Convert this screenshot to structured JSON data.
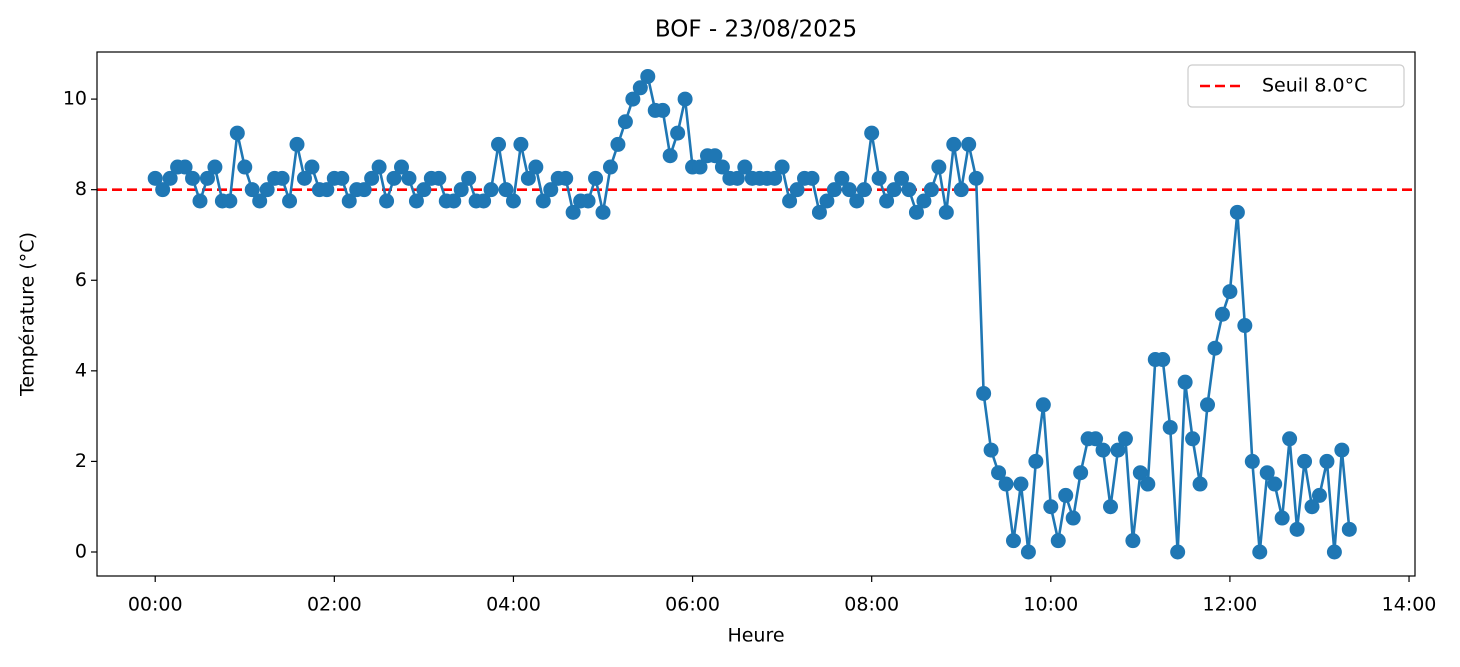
{
  "chart_data": {
    "type": "line",
    "title": "BOF - 23/08/2025",
    "x_label": "Heure",
    "y_label": "Température (°C)",
    "x": [
      0,
      5,
      10,
      15,
      20,
      25,
      30,
      35,
      40,
      45,
      50,
      55,
      60,
      65,
      70,
      75,
      80,
      85,
      90,
      95,
      100,
      105,
      110,
      115,
      120,
      125,
      130,
      135,
      140,
      145,
      150,
      155,
      160,
      165,
      170,
      175,
      180,
      185,
      190,
      195,
      200,
      205,
      210,
      215,
      220,
      225,
      230,
      235,
      240,
      245,
      250,
      255,
      260,
      265,
      270,
      275,
      280,
      285,
      290,
      295,
      300,
      305,
      310,
      315,
      320,
      325,
      330,
      335,
      340,
      345,
      350,
      355,
      360,
      365,
      370,
      375,
      380,
      385,
      390,
      395,
      400,
      405,
      410,
      415,
      420,
      425,
      430,
      435,
      440,
      445,
      450,
      455,
      460,
      465,
      470,
      475,
      480,
      485,
      490,
      495,
      500,
      505,
      510,
      515,
      520,
      525,
      530,
      535,
      540,
      545,
      550,
      555,
      560,
      565,
      570,
      575,
      580,
      585,
      590,
      595,
      600,
      605,
      610,
      615,
      620,
      625,
      630,
      635,
      640,
      645,
      650,
      655,
      660,
      665,
      670,
      675,
      680,
      685,
      690,
      695,
      700,
      705,
      710,
      715,
      720,
      725,
      730,
      735,
      740,
      745,
      750,
      755,
      760,
      765,
      770,
      775,
      780,
      785,
      790,
      795,
      800
    ],
    "series": [
      {
        "color": "#1f77b4",
        "values": [
          8.25,
          8.0,
          8.25,
          8.5,
          8.5,
          8.25,
          7.75,
          8.25,
          8.5,
          7.75,
          7.75,
          9.25,
          8.5,
          8.0,
          7.75,
          8.0,
          8.25,
          8.25,
          7.75,
          9.0,
          8.25,
          8.5,
          8.0,
          8.0,
          8.25,
          8.25,
          7.75,
          8.0,
          8.0,
          8.25,
          8.5,
          7.75,
          8.25,
          8.5,
          8.25,
          7.75,
          8.0,
          8.25,
          8.25,
          7.75,
          7.75,
          8.0,
          8.25,
          7.75,
          7.75,
          8.0,
          9.0,
          8.0,
          7.75,
          9.0,
          8.25,
          8.5,
          7.75,
          8.0,
          8.25,
          8.25,
          7.5,
          7.75,
          7.75,
          8.25,
          7.5,
          8.5,
          9.0,
          9.5,
          10.0,
          10.25,
          10.5,
          9.75,
          9.75,
          8.75,
          9.25,
          10.0,
          8.5,
          8.5,
          8.75,
          8.75,
          8.5,
          8.25,
          8.25,
          8.5,
          8.25,
          8.25,
          8.25,
          8.25,
          8.5,
          7.75,
          8.0,
          8.25,
          8.25,
          7.5,
          7.75,
          8.0,
          8.25,
          8.0,
          7.75,
          8.0,
          9.25,
          8.25,
          7.75,
          8.0,
          8.25,
          8.0,
          7.5,
          7.75,
          8.0,
          8.5,
          7.5,
          9.0,
          8.0,
          9.0,
          8.25,
          3.5,
          2.25,
          1.75,
          1.5,
          0.25,
          1.5,
          0.0,
          2.0,
          3.25,
          1.0,
          0.25,
          1.25,
          0.75,
          1.75,
          2.5,
          2.5,
          2.25,
          1.0,
          2.25,
          2.5,
          0.25,
          1.75,
          1.5,
          4.25,
          4.25,
          2.75,
          0.0,
          3.75,
          2.5,
          1.5,
          3.25,
          4.5,
          5.25,
          5.75,
          7.5,
          5.0,
          2.0,
          0.0,
          1.75,
          1.5,
          0.75,
          2.5,
          0.5,
          2.0,
          1.0,
          1.25,
          2.0,
          0.0,
          2.25,
          0.5
        ]
      }
    ],
    "threshold": {
      "value": 8,
      "label": "Seuil 8.0°C",
      "color": "#ff0000"
    },
    "xlim": [
      -39,
      844
    ],
    "xticks": [
      {
        "value": 0,
        "label": "00:00"
      },
      {
        "value": 120,
        "label": "02:00"
      },
      {
        "value": 240,
        "label": "04:00"
      },
      {
        "value": 360,
        "label": "06:00"
      },
      {
        "value": 480,
        "label": "08:00"
      },
      {
        "value": 600,
        "label": "10:00"
      },
      {
        "value": 720,
        "label": "12:00"
      },
      {
        "value": 840,
        "label": "14:00"
      }
    ],
    "ylim": [
      -0.53,
      11.04
    ],
    "yticks": [
      0,
      2,
      4,
      6,
      8,
      10
    ],
    "legend": "upper right"
  }
}
